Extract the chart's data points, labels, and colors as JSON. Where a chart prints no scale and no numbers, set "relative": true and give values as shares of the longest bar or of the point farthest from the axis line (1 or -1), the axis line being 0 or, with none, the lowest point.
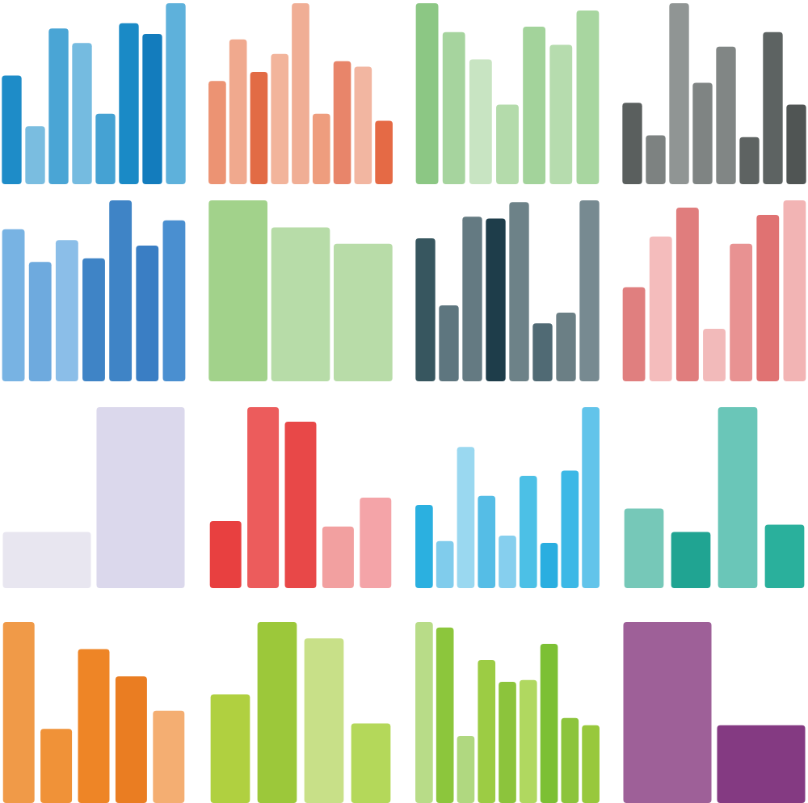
{
  "chart_data": [
    {
      "type": "bar",
      "relative": true,
      "categories": [
        null,
        null,
        null,
        null,
        null,
        null,
        null,
        null
      ],
      "values": [
        0.6,
        0.32,
        0.86,
        0.78,
        0.39,
        0.89,
        0.83,
        1
      ],
      "colors": [
        "#1e8cc8",
        "#7abde0",
        "#4aa5d5",
        "#75bbe0",
        "#45a2d3",
        "#1a8ac6",
        "#137cbd",
        "#5eb1db"
      ]
    },
    {
      "type": "bar",
      "relative": true,
      "categories": [
        null,
        null,
        null,
        null,
        null,
        null,
        null,
        null,
        null
      ],
      "values": [
        0.57,
        0.8,
        0.62,
        0.72,
        1,
        0.39,
        0.68,
        0.65,
        0.35
      ],
      "colors": [
        "#ec9373",
        "#f0a98e",
        "#e26b45",
        "#f2b49b",
        "#f0ae95",
        "#ee9d7e",
        "#e8856a",
        "#f2b6a1",
        "#e56a45"
      ]
    },
    {
      "type": "bar",
      "relative": true,
      "categories": [
        null,
        null,
        null,
        null,
        null,
        null,
        null
      ],
      "values": [
        1,
        0.84,
        0.69,
        0.44,
        0.87,
        0.77,
        0.96
      ],
      "colors": [
        "#8cc784",
        "#a6d49e",
        "#c8e4c2",
        "#b4dbab",
        "#a3d39b",
        "#b6dcae",
        "#a8d6a0"
      ]
    },
    {
      "type": "bar",
      "relative": true,
      "categories": [
        null,
        null,
        null,
        null,
        null,
        null,
        null,
        null
      ],
      "values": [
        0.45,
        0.27,
        1,
        0.56,
        0.76,
        0.26,
        0.84,
        0.44
      ],
      "colors": [
        "#5a5f5e",
        "#7d8281",
        "#909594",
        "#7f8483",
        "#818685",
        "#5e6362",
        "#5d6362",
        "#505554"
      ]
    },
    {
      "type": "bar",
      "relative": true,
      "categories": [
        null,
        null,
        null,
        null,
        null,
        null,
        null
      ],
      "values": [
        0.84,
        0.66,
        0.78,
        0.68,
        1,
        0.75,
        0.89
      ],
      "colors": [
        "#78b3e3",
        "#6eaade",
        "#8bbee8",
        "#3f84c6",
        "#3f84c6",
        "#3a7ec4",
        "#4a8fd0"
      ]
    },
    {
      "type": "bar",
      "relative": true,
      "categories": [
        null,
        null,
        null
      ],
      "values": [
        1,
        0.85,
        0.76
      ],
      "colors": [
        "#a2d28b",
        "#b7dca8",
        "#b8dca8"
      ]
    },
    {
      "type": "bar",
      "relative": true,
      "categories": [
        null,
        null,
        null,
        null,
        null,
        null,
        null,
        null
      ],
      "values": [
        0.79,
        0.42,
        0.91,
        0.9,
        0.99,
        0.32,
        0.38,
        1
      ],
      "colors": [
        "#37565f",
        "#5e767f",
        "#647a82",
        "#1e3d4a",
        "#6d8288",
        "#506a74",
        "#6b7f85",
        "#778a91"
      ]
    },
    {
      "type": "bar",
      "relative": true,
      "categories": [
        null,
        null,
        null,
        null,
        null,
        null,
        null
      ],
      "values": [
        0.52,
        0.8,
        0.96,
        0.29,
        0.76,
        0.92,
        1
      ],
      "colors": [
        "#e07f7f",
        "#f4bcbc",
        "#e07d7d",
        "#f2baba",
        "#e89292",
        "#e07272",
        "#f2b4b4"
      ]
    },
    {
      "type": "bar",
      "relative": true,
      "categories": [
        null,
        null
      ],
      "values": [
        0.31,
        1
      ],
      "colors": [
        "#e8e6f0",
        "#dbd8ec"
      ]
    },
    {
      "type": "bar",
      "relative": true,
      "categories": [
        null,
        null,
        null,
        null,
        null
      ],
      "values": [
        0.37,
        1,
        0.92,
        0.34,
        0.5
      ],
      "colors": [
        "#e84040",
        "#ec5c5c",
        "#e84848",
        "#f2a0a0",
        "#f4a4a8"
      ]
    },
    {
      "type": "bar",
      "relative": true,
      "categories": [
        null,
        null,
        null,
        null,
        null,
        null,
        null,
        null,
        null
      ],
      "values": [
        0.46,
        0.26,
        0.78,
        0.51,
        0.29,
        0.62,
        0.25,
        0.65,
        1
      ],
      "colors": [
        "#2bb0e0",
        "#80ccec",
        "#9ad8f0",
        "#55bde6",
        "#86cfee",
        "#4cc0e6",
        "#2aaee0",
        "#3cb8e6",
        "#62c4ea"
      ]
    },
    {
      "type": "bar",
      "relative": true,
      "categories": [
        null,
        null,
        null,
        null
      ],
      "values": [
        0.44,
        0.31,
        1,
        0.35
      ],
      "colors": [
        "#76c8b8",
        "#20a492",
        "#6ac6b8",
        "#2ab09c"
      ]
    },
    {
      "type": "bar",
      "relative": true,
      "categories": [
        null,
        null,
        null,
        null,
        null
      ],
      "values": [
        1,
        0.41,
        0.85,
        0.7,
        0.51
      ],
      "colors": [
        "#f09a48",
        "#f09238",
        "#ee8526",
        "#ea7d22",
        "#f4ae72"
      ]
    },
    {
      "type": "bar",
      "relative": true,
      "categories": [
        null,
        null,
        null,
        null
      ],
      "values": [
        0.6,
        1,
        0.91,
        0.44
      ],
      "colors": [
        "#b0d040",
        "#9cc83a",
        "#c8e088",
        "#b4d85a"
      ]
    },
    {
      "type": "bar",
      "relative": true,
      "categories": [
        null,
        null,
        null,
        null,
        null,
        null,
        null,
        null,
        null
      ],
      "values": [
        1,
        0.97,
        0.37,
        0.79,
        0.67,
        0.68,
        0.88,
        0.47,
        0.43
      ],
      "colors": [
        "#b8dc88",
        "#8cc63c",
        "#b0d880",
        "#9ccc44",
        "#8cc43c",
        "#b0d860",
        "#7cc034",
        "#8cc43c",
        "#98c83c"
      ]
    },
    {
      "type": "bar",
      "relative": true,
      "categories": [
        null,
        null
      ],
      "values": [
        1,
        0.43
      ],
      "colors": [
        "#9e6098",
        "#843a82"
      ]
    }
  ]
}
